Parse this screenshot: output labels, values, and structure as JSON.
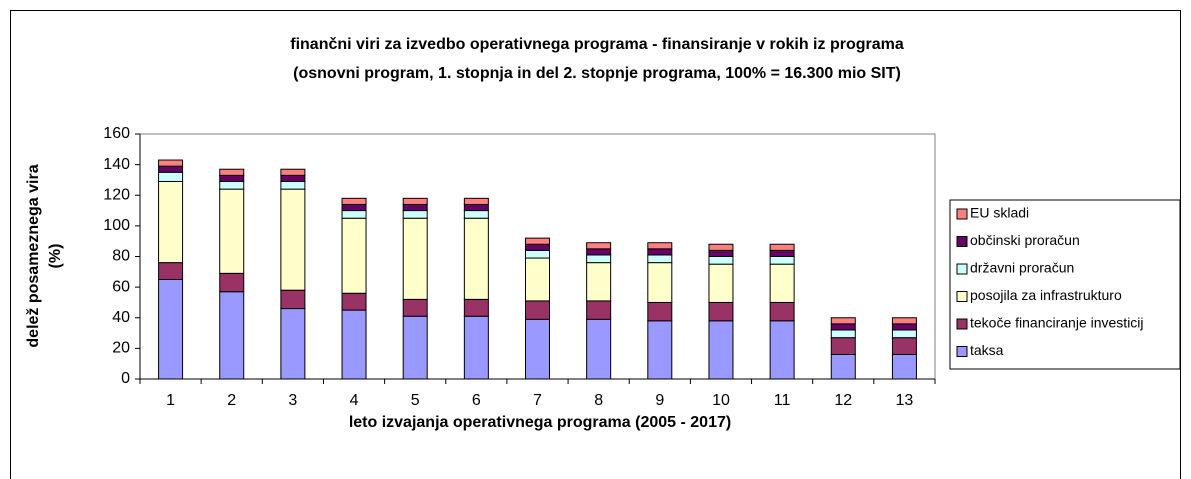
{
  "chart_data": {
    "type": "stacked_bar",
    "title": [
      "finančni viri za izvedbo operativnega programa - finansiranje v rokih iz programa",
      "(osnovni program, 1. stopnja in del 2. stopnje programa, 100% = 16.300 mio SIT)"
    ],
    "x_label": "leto izvajanja operativnega programa (2005 - 2017)",
    "y_label": [
      "delež posameznega vira",
      "(%)"
    ],
    "categories": [
      "1",
      "2",
      "3",
      "4",
      "5",
      "6",
      "7",
      "8",
      "9",
      "10",
      "11",
      "12",
      "13"
    ],
    "series": [
      {
        "name": "taksa",
        "color": "#9999ff",
        "values": [
          65,
          57,
          46,
          45,
          41,
          41,
          39,
          39,
          38,
          38,
          38,
          16,
          16
        ]
      },
      {
        "name": "tekoče financiranje investicij",
        "color": "#993366",
        "values": [
          11,
          12,
          12,
          11,
          11,
          11,
          12,
          12,
          12,
          12,
          12,
          11,
          11
        ]
      },
      {
        "name": "posojila za infrastrukturo",
        "color": "#ffffcc",
        "values": [
          53,
          55,
          66,
          49,
          53,
          53,
          28,
          25,
          26,
          25,
          25,
          0,
          0
        ]
      },
      {
        "name": "državni proračun",
        "color": "#ccffff",
        "values": [
          6,
          5,
          5,
          5,
          5,
          5,
          5,
          5,
          5,
          5,
          5,
          5,
          5
        ]
      },
      {
        "name": "občinski proračun",
        "color": "#660066",
        "values": [
          4,
          4,
          4,
          4,
          4,
          4,
          4,
          4,
          4,
          4,
          4,
          4,
          4
        ]
      },
      {
        "name": "EU skladi",
        "color": "#ff8080",
        "values": [
          4,
          4,
          4,
          4,
          4,
          4,
          4,
          4,
          4,
          4,
          4,
          4,
          4
        ]
      }
    ],
    "ylim": [
      0,
      160
    ],
    "yticks": [
      0,
      20,
      40,
      60,
      80,
      100,
      120,
      140,
      160
    ],
    "grid": false,
    "legend": "right"
  }
}
